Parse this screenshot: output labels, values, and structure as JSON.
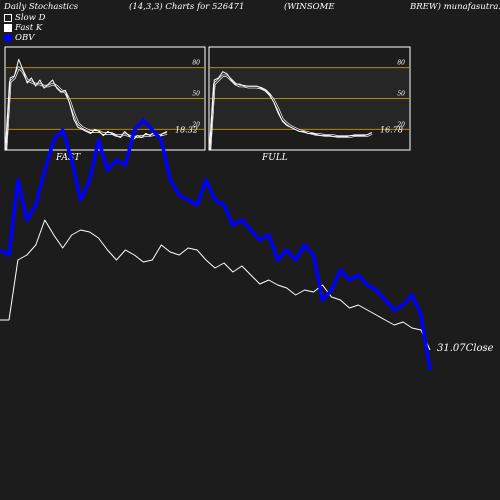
{
  "header": {
    "title": "Daily Stochastics",
    "params": "(14,3,3) Charts for 526471",
    "company_a": "(WINSOME",
    "company_b": "BREW) munafasutra.com"
  },
  "legend": [
    {
      "label": "Slow  D"
    },
    {
      "label": "Fast K"
    },
    {
      "label": "OBV"
    }
  ],
  "colors": {
    "background": "#1c1c1c",
    "price": "#ffffff",
    "obv": "#0000ff",
    "band": "#b8860b",
    "panel": "#262626"
  },
  "chart_data": [
    {
      "type": "line",
      "name": "fast-stochastic-panel",
      "caption": "FAST",
      "ylim": [
        0,
        100
      ],
      "yticks": [
        80,
        50,
        20
      ],
      "bands": [
        80,
        50,
        20
      ],
      "last_value_label": "18.32",
      "series": [
        {
          "values": [
            0,
            70,
            72,
            88,
            78,
            65,
            70,
            62,
            68,
            60,
            64,
            68,
            60,
            56,
            58,
            45,
            30,
            22,
            20,
            18,
            16,
            20,
            18,
            14,
            18,
            16,
            14,
            12,
            18,
            14,
            10,
            14,
            12,
            16,
            14,
            18,
            12,
            16,
            18
          ]
        },
        {
          "values": [
            0,
            66,
            70,
            80,
            76,
            68,
            66,
            64,
            64,
            62,
            62,
            64,
            62,
            58,
            56,
            48,
            36,
            26,
            22,
            20,
            18,
            18,
            18,
            16,
            16,
            16,
            14,
            14,
            15,
            14,
            12,
            13,
            13,
            14,
            14,
            15,
            14,
            15,
            16
          ]
        }
      ]
    },
    {
      "type": "line",
      "name": "full-stochastic-panel",
      "caption": "FULL",
      "ylim": [
        0,
        100
      ],
      "yticks": [
        80,
        50,
        20
      ],
      "bands": [
        80,
        50,
        20
      ],
      "last_value_label": "16.78",
      "series": [
        {
          "values": [
            0,
            68,
            70,
            76,
            74,
            68,
            64,
            64,
            62,
            62,
            62,
            62,
            60,
            58,
            54,
            46,
            36,
            28,
            24,
            22,
            20,
            18,
            18,
            16,
            16,
            15,
            14,
            14,
            14,
            13,
            13,
            13,
            13,
            14,
            14,
            14,
            14,
            15,
            17
          ]
        },
        {
          "values": [
            0,
            64,
            68,
            72,
            72,
            68,
            64,
            62,
            62,
            61,
            61,
            61,
            60,
            58,
            54,
            48,
            40,
            30,
            26,
            23,
            21,
            19,
            18,
            17,
            16,
            15,
            15,
            14,
            14,
            14,
            13,
            13,
            13,
            13,
            14,
            14,
            14,
            14,
            16
          ]
        }
      ]
    },
    {
      "type": "line",
      "name": "price-obv-panel",
      "last_value_label": "31.07",
      "last_value_suffix": "Close",
      "series": [
        {
          "name": "Close",
          "values": [
            0,
            0,
            200,
            205,
            215,
            240,
            225,
            212,
            225,
            230,
            228,
            222,
            210,
            200,
            210,
            205,
            198,
            200,
            215,
            208,
            205,
            212,
            210,
            200,
            192,
            197,
            188,
            194,
            185,
            176,
            180,
            175,
            172,
            165,
            170,
            168,
            175,
            163,
            160,
            152,
            155,
            150,
            145,
            140,
            135,
            138,
            132,
            130,
            110
          ]
        },
        {
          "name": "OBV",
          "values": [
            350,
            345,
            420,
            380,
            395,
            430,
            460,
            470,
            440,
            400,
            420,
            460,
            430,
            440,
            435,
            470,
            480,
            470,
            460,
            420,
            405,
            400,
            395,
            420,
            400,
            395,
            375,
            380,
            370,
            360,
            365,
            340,
            350,
            340,
            355,
            345,
            300,
            310,
            330,
            320,
            325,
            315,
            310,
            300,
            290,
            295,
            305,
            285,
            230
          ]
        }
      ]
    }
  ]
}
